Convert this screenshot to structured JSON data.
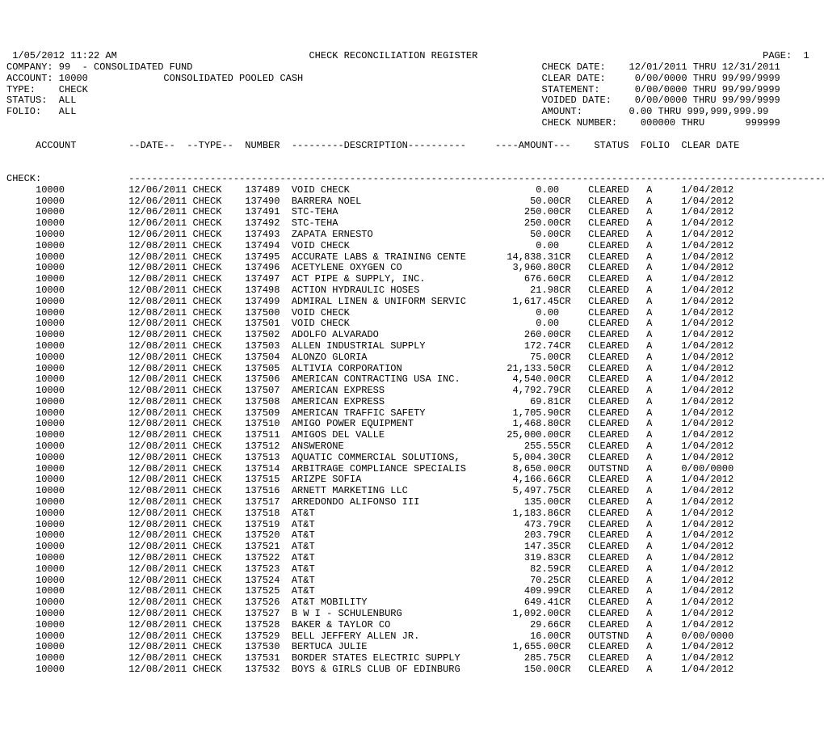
{
  "header": {
    "timestamp": " 1/05/2012 11:22 AM",
    "title": "CHECK RECONCILIATION REGISTER",
    "page_label": "PAGE:",
    "page_number": "1",
    "company_label": "COMPANY:",
    "company_value": "99  - CONSOLIDATED FUND",
    "check_date_label": "CHECK DATE:",
    "check_date_value": "12/01/2011 THRU 12/31/2011",
    "account_label": "ACCOUNT:",
    "account_value": "10000",
    "account_desc": "CONSOLIDATED POOLED CASH",
    "clear_date_label": "CLEAR DATE:",
    "clear_date_value": " 0/00/0000 THRU 99/99/9999",
    "type_label": "TYPE:",
    "type_value": "CHECK",
    "statement_label": "STATEMENT:",
    "statement_value": " 0/00/0000 THRU 99/99/9999",
    "status_label": "STATUS:",
    "status_value": "ALL",
    "voided_date_label": "VOIDED DATE:",
    "voided_date_value": " 0/00/0000 THRU 99/99/9999",
    "folio_label": "FOLIO:",
    "folio_value": "ALL",
    "amount_label": "AMOUNT:",
    "amount_value": "   0.00 THRU 999,999,999.99",
    "check_number_label": "CHECK NUMBER:",
    "check_number_value": "   000000 THRU       999999"
  },
  "cols": {
    "account": "ACCOUNT",
    "date": "--DATE--",
    "type": "--TYPE--",
    "number": "NUMBER",
    "description": "---------DESCRIPTION----------",
    "amount": "----AMOUNT---",
    "status": "STATUS",
    "folio": "FOLIO",
    "clear_date": "CLEAR DATE"
  },
  "section_label": "CHECK:",
  "divider": "------------------------------------------------------------------------------------------------------------------------------------",
  "rows": [
    {
      "account": "10000",
      "date": "12/06/2011",
      "type": "CHECK",
      "number": "137489",
      "desc": "VOID CHECK",
      "amount": "0.00  ",
      "status": "CLEARED",
      "folio": "A",
      "clear": "1/04/2012"
    },
    {
      "account": "10000",
      "date": "12/06/2011",
      "type": "CHECK",
      "number": "137490",
      "desc": "BARRERA NOEL",
      "amount": "50.00CR",
      "status": "CLEARED",
      "folio": "A",
      "clear": "1/04/2012"
    },
    {
      "account": "10000",
      "date": "12/06/2011",
      "type": "CHECK",
      "number": "137491",
      "desc": "STC-TEHA",
      "amount": "250.00CR",
      "status": "CLEARED",
      "folio": "A",
      "clear": "1/04/2012"
    },
    {
      "account": "10000",
      "date": "12/06/2011",
      "type": "CHECK",
      "number": "137492",
      "desc": "STC-TEHA",
      "amount": "250.00CR",
      "status": "CLEARED",
      "folio": "A",
      "clear": "1/04/2012"
    },
    {
      "account": "10000",
      "date": "12/06/2011",
      "type": "CHECK",
      "number": "137493",
      "desc": "ZAPATA ERNESTO",
      "amount": "50.00CR",
      "status": "CLEARED",
      "folio": "A",
      "clear": "1/04/2012"
    },
    {
      "account": "10000",
      "date": "12/08/2011",
      "type": "CHECK",
      "number": "137494",
      "desc": "VOID CHECK",
      "amount": "0.00  ",
      "status": "CLEARED",
      "folio": "A",
      "clear": "1/04/2012"
    },
    {
      "account": "10000",
      "date": "12/08/2011",
      "type": "CHECK",
      "number": "137495",
      "desc": "ACCURATE LABS & TRAINING CENTE",
      "amount": "14,838.31CR",
      "status": "CLEARED",
      "folio": "A",
      "clear": "1/04/2012"
    },
    {
      "account": "10000",
      "date": "12/08/2011",
      "type": "CHECK",
      "number": "137496",
      "desc": "ACETYLENE OXYGEN CO",
      "amount": "3,960.80CR",
      "status": "CLEARED",
      "folio": "A",
      "clear": "1/04/2012"
    },
    {
      "account": "10000",
      "date": "12/08/2011",
      "type": "CHECK",
      "number": "137497",
      "desc": "ACT PIPE & SUPPLY, INC.",
      "amount": "676.60CR",
      "status": "CLEARED",
      "folio": "A",
      "clear": "1/04/2012"
    },
    {
      "account": "10000",
      "date": "12/08/2011",
      "type": "CHECK",
      "number": "137498",
      "desc": "ACTION HYDRAULIC HOSES",
      "amount": "21.98CR",
      "status": "CLEARED",
      "folio": "A",
      "clear": "1/04/2012"
    },
    {
      "account": "10000",
      "date": "12/08/2011",
      "type": "CHECK",
      "number": "137499",
      "desc": "ADMIRAL LINEN & UNIFORM SERVIC",
      "amount": "1,617.45CR",
      "status": "CLEARED",
      "folio": "A",
      "clear": "1/04/2012"
    },
    {
      "account": "10000",
      "date": "12/08/2011",
      "type": "CHECK",
      "number": "137500",
      "desc": "VOID CHECK",
      "amount": "0.00  ",
      "status": "CLEARED",
      "folio": "A",
      "clear": "1/04/2012"
    },
    {
      "account": "10000",
      "date": "12/08/2011",
      "type": "CHECK",
      "number": "137501",
      "desc": "VOID CHECK",
      "amount": "0.00  ",
      "status": "CLEARED",
      "folio": "A",
      "clear": "1/04/2012"
    },
    {
      "account": "10000",
      "date": "12/08/2011",
      "type": "CHECK",
      "number": "137502",
      "desc": "ADOLFO ALVARADO",
      "amount": "260.00CR",
      "status": "CLEARED",
      "folio": "A",
      "clear": "1/04/2012"
    },
    {
      "account": "10000",
      "date": "12/08/2011",
      "type": "CHECK",
      "number": "137503",
      "desc": "ALLEN INDUSTRIAL SUPPLY",
      "amount": "172.74CR",
      "status": "CLEARED",
      "folio": "A",
      "clear": "1/04/2012"
    },
    {
      "account": "10000",
      "date": "12/08/2011",
      "type": "CHECK",
      "number": "137504",
      "desc": "ALONZO GLORIA",
      "amount": "75.00CR",
      "status": "CLEARED",
      "folio": "A",
      "clear": "1/04/2012"
    },
    {
      "account": "10000",
      "date": "12/08/2011",
      "type": "CHECK",
      "number": "137505",
      "desc": "ALTIVIA CORPORATION",
      "amount": "21,133.50CR",
      "status": "CLEARED",
      "folio": "A",
      "clear": "1/04/2012"
    },
    {
      "account": "10000",
      "date": "12/08/2011",
      "type": "CHECK",
      "number": "137506",
      "desc": "AMERICAN CONTRACTING USA INC.",
      "amount": "4,540.00CR",
      "status": "CLEARED",
      "folio": "A",
      "clear": "1/04/2012"
    },
    {
      "account": "10000",
      "date": "12/08/2011",
      "type": "CHECK",
      "number": "137507",
      "desc": "AMERICAN EXPRESS",
      "amount": "4,792.79CR",
      "status": "CLEARED",
      "folio": "A",
      "clear": "1/04/2012"
    },
    {
      "account": "10000",
      "date": "12/08/2011",
      "type": "CHECK",
      "number": "137508",
      "desc": "AMERICAN EXPRESS",
      "amount": "69.81CR",
      "status": "CLEARED",
      "folio": "A",
      "clear": "1/04/2012"
    },
    {
      "account": "10000",
      "date": "12/08/2011",
      "type": "CHECK",
      "number": "137509",
      "desc": "AMERICAN TRAFFIC SAFETY",
      "amount": "1,705.90CR",
      "status": "CLEARED",
      "folio": "A",
      "clear": "1/04/2012"
    },
    {
      "account": "10000",
      "date": "12/08/2011",
      "type": "CHECK",
      "number": "137510",
      "desc": "AMIGO POWER EQUIPMENT",
      "amount": "1,468.80CR",
      "status": "CLEARED",
      "folio": "A",
      "clear": "1/04/2012"
    },
    {
      "account": "10000",
      "date": "12/08/2011",
      "type": "CHECK",
      "number": "137511",
      "desc": "AMIGOS DEL VALLE",
      "amount": "25,000.00CR",
      "status": "CLEARED",
      "folio": "A",
      "clear": "1/04/2012"
    },
    {
      "account": "10000",
      "date": "12/08/2011",
      "type": "CHECK",
      "number": "137512",
      "desc": "ANSWERONE",
      "amount": "255.55CR",
      "status": "CLEARED",
      "folio": "A",
      "clear": "1/04/2012"
    },
    {
      "account": "10000",
      "date": "12/08/2011",
      "type": "CHECK",
      "number": "137513",
      "desc": "AQUATIC COMMERCIAL SOLUTIONS,",
      "amount": "5,004.30CR",
      "status": "CLEARED",
      "folio": "A",
      "clear": "1/04/2012"
    },
    {
      "account": "10000",
      "date": "12/08/2011",
      "type": "CHECK",
      "number": "137514",
      "desc": "ARBITRAGE COMPLIANCE SPECIALIS",
      "amount": "8,650.00CR",
      "status": "OUTSTND",
      "folio": "A",
      "clear": "0/00/0000"
    },
    {
      "account": "10000",
      "date": "12/08/2011",
      "type": "CHECK",
      "number": "137515",
      "desc": "ARIZPE SOFIA",
      "amount": "4,166.66CR",
      "status": "CLEARED",
      "folio": "A",
      "clear": "1/04/2012"
    },
    {
      "account": "10000",
      "date": "12/08/2011",
      "type": "CHECK",
      "number": "137516",
      "desc": "ARNETT MARKETING LLC",
      "amount": "5,497.75CR",
      "status": "CLEARED",
      "folio": "A",
      "clear": "1/04/2012"
    },
    {
      "account": "10000",
      "date": "12/08/2011",
      "type": "CHECK",
      "number": "137517",
      "desc": "ARREDONDO ALIFONSO III",
      "amount": "135.00CR",
      "status": "CLEARED",
      "folio": "A",
      "clear": "1/04/2012"
    },
    {
      "account": "10000",
      "date": "12/08/2011",
      "type": "CHECK",
      "number": "137518",
      "desc": "AT&T",
      "amount": "1,183.86CR",
      "status": "CLEARED",
      "folio": "A",
      "clear": "1/04/2012"
    },
    {
      "account": "10000",
      "date": "12/08/2011",
      "type": "CHECK",
      "number": "137519",
      "desc": "AT&T",
      "amount": "473.79CR",
      "status": "CLEARED",
      "folio": "A",
      "clear": "1/04/2012"
    },
    {
      "account": "10000",
      "date": "12/08/2011",
      "type": "CHECK",
      "number": "137520",
      "desc": "AT&T",
      "amount": "203.79CR",
      "status": "CLEARED",
      "folio": "A",
      "clear": "1/04/2012"
    },
    {
      "account": "10000",
      "date": "12/08/2011",
      "type": "CHECK",
      "number": "137521",
      "desc": "AT&T",
      "amount": "147.35CR",
      "status": "CLEARED",
      "folio": "A",
      "clear": "1/04/2012"
    },
    {
      "account": "10000",
      "date": "12/08/2011",
      "type": "CHECK",
      "number": "137522",
      "desc": "AT&T",
      "amount": "319.83CR",
      "status": "CLEARED",
      "folio": "A",
      "clear": "1/04/2012"
    },
    {
      "account": "10000",
      "date": "12/08/2011",
      "type": "CHECK",
      "number": "137523",
      "desc": "AT&T",
      "amount": "82.59CR",
      "status": "CLEARED",
      "folio": "A",
      "clear": "1/04/2012"
    },
    {
      "account": "10000",
      "date": "12/08/2011",
      "type": "CHECK",
      "number": "137524",
      "desc": "AT&T",
      "amount": "70.25CR",
      "status": "CLEARED",
      "folio": "A",
      "clear": "1/04/2012"
    },
    {
      "account": "10000",
      "date": "12/08/2011",
      "type": "CHECK",
      "number": "137525",
      "desc": "AT&T",
      "amount": "409.99CR",
      "status": "CLEARED",
      "folio": "A",
      "clear": "1/04/2012"
    },
    {
      "account": "10000",
      "date": "12/08/2011",
      "type": "CHECK",
      "number": "137526",
      "desc": "AT&T MOBILITY",
      "amount": "649.41CR",
      "status": "CLEARED",
      "folio": "A",
      "clear": "1/04/2012"
    },
    {
      "account": "10000",
      "date": "12/08/2011",
      "type": "CHECK",
      "number": "137527",
      "desc": "B W I - SCHULENBURG",
      "amount": "1,092.00CR",
      "status": "CLEARED",
      "folio": "A",
      "clear": "1/04/2012"
    },
    {
      "account": "10000",
      "date": "12/08/2011",
      "type": "CHECK",
      "number": "137528",
      "desc": "BAKER & TAYLOR CO",
      "amount": "29.66CR",
      "status": "CLEARED",
      "folio": "A",
      "clear": "1/04/2012"
    },
    {
      "account": "10000",
      "date": "12/08/2011",
      "type": "CHECK",
      "number": "137529",
      "desc": "BELL JEFFERY ALLEN JR.",
      "amount": "16.00CR",
      "status": "OUTSTND",
      "folio": "A",
      "clear": "0/00/0000"
    },
    {
      "account": "10000",
      "date": "12/08/2011",
      "type": "CHECK",
      "number": "137530",
      "desc": "BERTUCA JULIE",
      "amount": "1,655.00CR",
      "status": "CLEARED",
      "folio": "A",
      "clear": "1/04/2012"
    },
    {
      "account": "10000",
      "date": "12/08/2011",
      "type": "CHECK",
      "number": "137531",
      "desc": "BORDER STATES ELECTRIC SUPPLY",
      "amount": "285.75CR",
      "status": "CLEARED",
      "folio": "A",
      "clear": "1/04/2012"
    },
    {
      "account": "10000",
      "date": "12/08/2011",
      "type": "CHECK",
      "number": "137532",
      "desc": "BOYS & GIRLS CLUB OF EDINBURG",
      "amount": "150.00CR",
      "status": "CLEARED",
      "folio": "A",
      "clear": "1/04/2012"
    }
  ]
}
